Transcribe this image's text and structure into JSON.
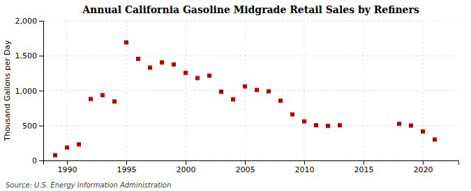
{
  "chart_data": {
    "type": "scatter",
    "title": "Annual California Gasoline Midgrade Retail Sales by Refiners",
    "ylabel": "Thousand Gallons per Day",
    "annotations": [
      "Source: U.S. Energy Information Administration"
    ],
    "x": [
      1989,
      1990,
      1991,
      1992,
      1993,
      1994,
      1995,
      1996,
      1997,
      1998,
      1999,
      2000,
      2001,
      2002,
      2003,
      2004,
      2005,
      2006,
      2007,
      2008,
      2009,
      2010,
      2011,
      2012,
      2013,
      2018,
      2019,
      2020,
      2021
    ],
    "values": [
      75,
      185,
      230,
      880,
      935,
      845,
      1690,
      1455,
      1330,
      1405,
      1375,
      1255,
      1180,
      1215,
      985,
      875,
      1060,
      1010,
      990,
      855,
      660,
      560,
      505,
      495,
      505,
      525,
      500,
      415,
      300
    ],
    "color": "#c00000",
    "marker": "square",
    "xlim": [
      1988,
      2023
    ],
    "xticks": [
      1990,
      1995,
      2000,
      2005,
      2010,
      2015,
      2020
    ],
    "ylim": [
      0,
      2000
    ],
    "yticks": [
      0,
      500,
      {
        "value": 1000,
        "label": "1,000"
      },
      {
        "value": 1500,
        "label": "1,500"
      },
      {
        "value": 2000,
        "label": "2,000"
      }
    ],
    "grid": true
  }
}
